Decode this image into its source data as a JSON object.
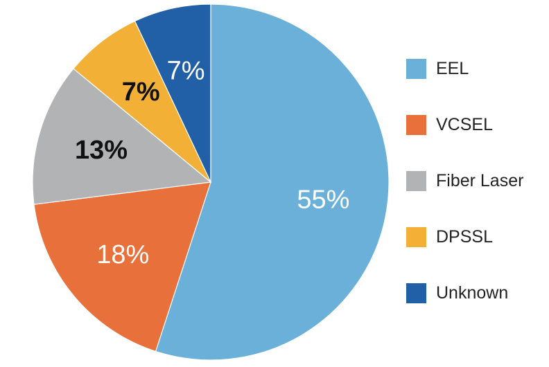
{
  "chart_data": {
    "type": "pie",
    "title": "",
    "slices": [
      {
        "label": "EEL",
        "value": 55,
        "display": "55%",
        "color": "#6bb0d9",
        "label_color": "#ffffff"
      },
      {
        "label": "VCSEL",
        "value": 18,
        "display": "18%",
        "color": "#e8703a",
        "label_color": "#ffffff"
      },
      {
        "label": "Fiber Laser",
        "value": 13,
        "display": "13%",
        "color": "#b2b3b5",
        "label_color": "#111111"
      },
      {
        "label": "DPSSL",
        "value": 7,
        "display": "7%",
        "color": "#f2b136",
        "label_color": "#111111"
      },
      {
        "label": "Unknown",
        "value": 7,
        "display": "7%",
        "color": "#215fa6",
        "label_color": "#ffffff"
      }
    ],
    "start": "top",
    "direction": "clockwise",
    "legend_position": "right"
  }
}
